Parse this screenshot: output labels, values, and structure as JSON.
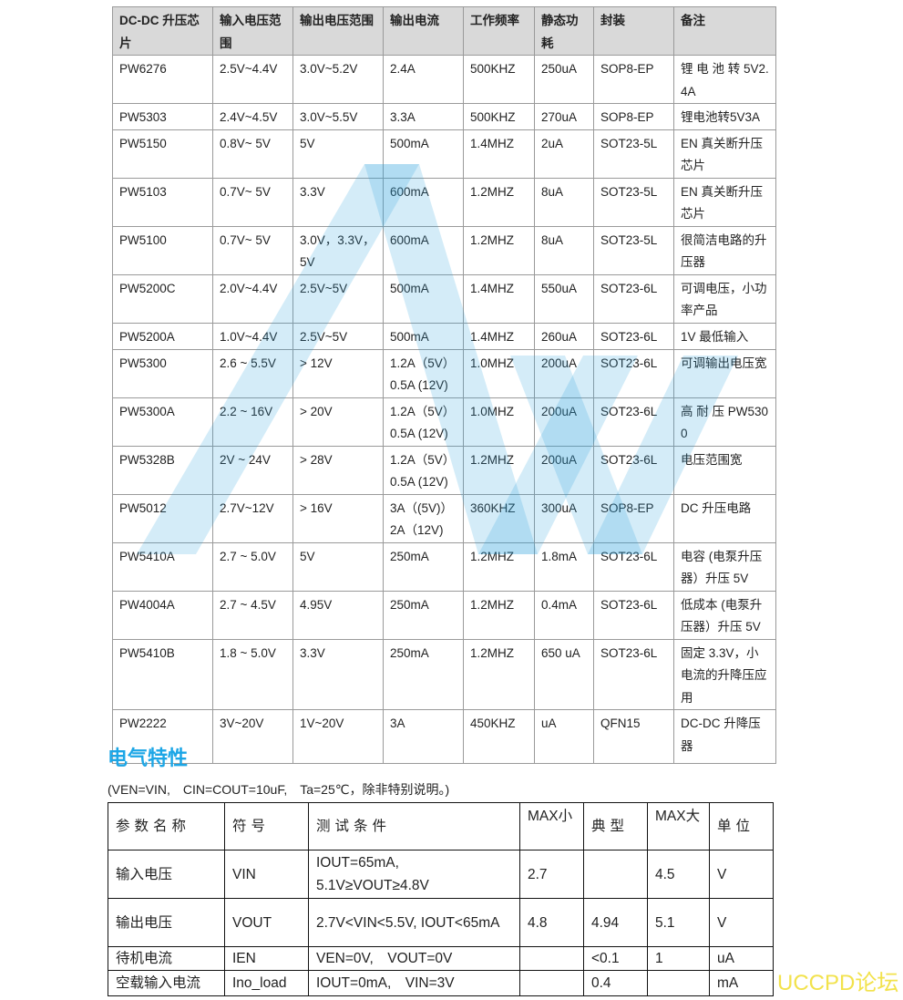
{
  "chip_table": {
    "headers": [
      "DC-DC 升压芯片",
      "输入电压范围",
      "输出电压范围",
      "输出电流",
      "工作频率",
      "静态功耗",
      "封装",
      "备注"
    ],
    "rows": [
      [
        "PW6276",
        "2.5V~4.4V",
        "3.0V~5.2V",
        "2.4A",
        "500KHZ",
        "250uA",
        "SOP8-EP",
        "锂 电 池 转 5V2.4A"
      ],
      [
        "PW5303",
        "2.4V~4.5V",
        "3.0V~5.5V",
        "3.3A",
        "500KHZ",
        "270uA",
        "SOP8-EP",
        "锂电池转5V3A"
      ],
      [
        "PW5150",
        "0.8V~ 5V",
        "5V",
        "500mA",
        "1.4MHZ",
        "2uA",
        "SOT23-5L",
        "EN 真关断升压芯片"
      ],
      [
        "PW5103",
        "0.7V~ 5V",
        "3.3V",
        "600mA",
        "1.2MHZ",
        "8uA",
        "SOT23-5L",
        "EN 真关断升压芯片"
      ],
      [
        "PW5100",
        "0.7V~ 5V",
        "3.0V，3.3V，5V",
        "600mA",
        "1.2MHZ",
        "8uA",
        "SOT23-5L",
        "很简洁电路的升压器"
      ],
      [
        "PW5200C",
        "2.0V~4.4V",
        "2.5V~5V",
        "500mA",
        "1.4MHZ",
        "550uA",
        "SOT23-6L",
        "可调电压，小功率产品"
      ],
      [
        "PW5200A",
        "1.0V~4.4V",
        "2.5V~5V",
        "500mA",
        "1.4MHZ",
        "260uA",
        "SOT23-6L",
        "1V 最低输入"
      ],
      [
        "PW5300",
        "2.6 ~ 5.5V",
        "> 12V",
        "1.2A（5V）0.5A (12V)",
        "1.0MHZ",
        "200uA",
        "SOT23-6L",
        "可调输出电压宽"
      ],
      [
        "PW5300A",
        "2.2 ~ 16V",
        "> 20V",
        "1.2A（5V）0.5A (12V)",
        "1.0MHZ",
        "200uA",
        "SOT23-6L",
        "高 耐 压 PW5300"
      ],
      [
        "PW5328B",
        "2V ~ 24V",
        "> 28V",
        "1.2A（5V）0.5A (12V)",
        "1.2MHZ",
        "200uA",
        "SOT23-6L",
        "电压范围宽"
      ],
      [
        "PW5012",
        "2.7V~12V",
        "> 16V",
        "3A（(5V)）2A（12V)",
        "360KHZ",
        "300uA",
        "SOP8-EP",
        "DC 升压电路"
      ],
      [
        "PW5410A",
        "2.7 ~ 5.0V",
        "5V",
        "250mA",
        "1.2MHZ",
        "1.8mA",
        "SOT23-6L",
        "电容 (电泵升压器）升压 5V"
      ],
      [
        "PW4004A",
        "2.7 ~ 4.5V",
        "4.95V",
        "250mA",
        "1.2MHZ",
        "0.4mA",
        "SOT23-6L",
        "低成本 (电泵升压器）升压 5V"
      ],
      [
        "PW5410B",
        "1.8 ~ 5.0V",
        "3.3V",
        "250mA",
        "1.2MHZ",
        "650 uA",
        "SOT23-6L",
        "固定 3.3V，小电流的升降压应用"
      ],
      [
        "PW2222",
        "3V~20V",
        "1V~20V",
        "3A",
        "450KHZ",
        "uA",
        "QFN15",
        "DC-DC 升降压器"
      ]
    ]
  },
  "electrical": {
    "title": "电气特性",
    "note": "(VEN=VIN,　CIN=COUT=10uF,　Ta=25℃，除非特别说明。)",
    "headers": [
      "参数名称",
      "符号",
      "测试条件",
      "MAX小",
      "典型",
      "MAX大",
      "单位"
    ],
    "rows": [
      [
        "输入电压",
        "VIN",
        "IOUT=65mA, 5.1V≥VOUT≥4.8V",
        "2.7",
        "",
        "4.5",
        "V"
      ],
      [
        "输出电压",
        "VOUT",
        "2.7V<VIN<5.5V, IOUT<65mA",
        "4.8",
        "4.94",
        "5.1",
        "V"
      ],
      [
        "待机电流",
        "IEN",
        "VEN=0V,　VOUT=0V",
        "",
        "<0.1",
        "1",
        "uA"
      ],
      [
        "空载输入电流",
        "Ino_load",
        "IOUT=0mA,　VIN=3V",
        "",
        "0.4",
        "",
        "mA"
      ]
    ]
  },
  "watermark_text": "UCCPD论坛",
  "colors": {
    "title": "#1ca6e6",
    "header_bg": "#d9d9d9",
    "watermark": "#2aa0dc",
    "corner_text": "#f2e24c"
  }
}
